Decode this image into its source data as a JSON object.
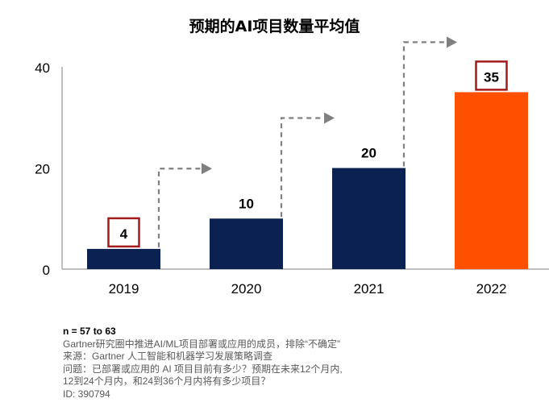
{
  "chart_data": {
    "type": "bar",
    "title": "预期的AI项目数量平均值",
    "categories": [
      "2019",
      "2020",
      "2021",
      "2022"
    ],
    "values": [
      4,
      10,
      20,
      35
    ],
    "data_labels": [
      "4",
      "10",
      "20",
      "35"
    ],
    "boxed_labels": [
      "4",
      "35"
    ],
    "bar_colors": [
      "#0b2152",
      "#0b2152",
      "#0b2152",
      "#ff5000"
    ],
    "box_color": "#a31a1a",
    "arrow_color": "#7f7f7f",
    "ylim": [
      0,
      40
    ],
    "yticks": [
      0,
      20,
      40
    ],
    "grid": false,
    "xlabel": "",
    "ylabel": ""
  },
  "notes": {
    "n": "n = 57 to 63",
    "line1": "Gartner研究圈中推进AI/ML项目部署或应用的成员，排除“不确定”",
    "line2": "来源：Gartner 人工智能和机器学习发展策略调查",
    "line3": "问题：已部署或应用的 AI 项目目前有多少？预期在未来12个月内,",
    "line4": "12到24个月内，和24到36个月内将有多少项目？",
    "line5": "ID: 390794"
  }
}
